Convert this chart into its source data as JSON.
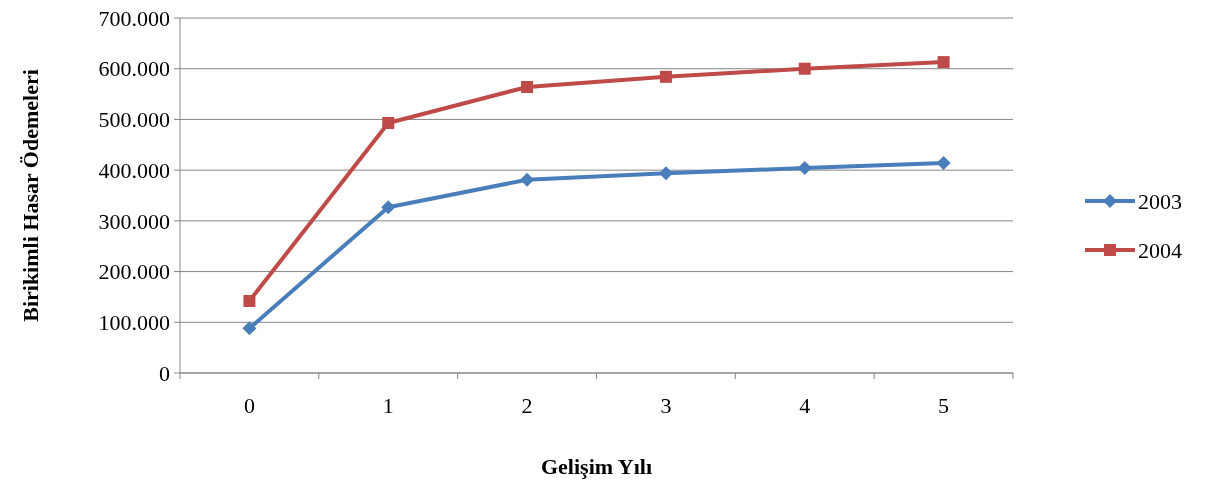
{
  "chart_data": {
    "type": "line",
    "xlabel": "Gelişim Yılı",
    "ylabel": "Birikimli Hasar Ödemeleri",
    "categories": [
      "0",
      "1",
      "2",
      "3",
      "4",
      "5"
    ],
    "series": [
      {
        "name": "2003",
        "color": "#4a7ebb",
        "marker": "diamond",
        "values": [
          88000,
          327000,
          381000,
          394000,
          404000,
          414000
        ]
      },
      {
        "name": "2004",
        "color": "#be4b48",
        "marker": "square",
        "values": [
          142000,
          493000,
          564000,
          584000,
          600000,
          613000
        ]
      }
    ],
    "ylim": [
      0,
      700000
    ],
    "yticks": [
      0,
      {
        "value": 100000,
        "label": "100.000"
      },
      {
        "value": 200000,
        "label": "200.000"
      },
      {
        "value": 300000,
        "label": "300.000"
      },
      {
        "value": 400000,
        "label": "400.000"
      },
      {
        "value": 500000,
        "label": "500.000"
      },
      {
        "value": 600000,
        "label": "600.000"
      },
      {
        "value": 700000,
        "label": "700.000"
      }
    ],
    "grid": "y",
    "legend": "right"
  }
}
